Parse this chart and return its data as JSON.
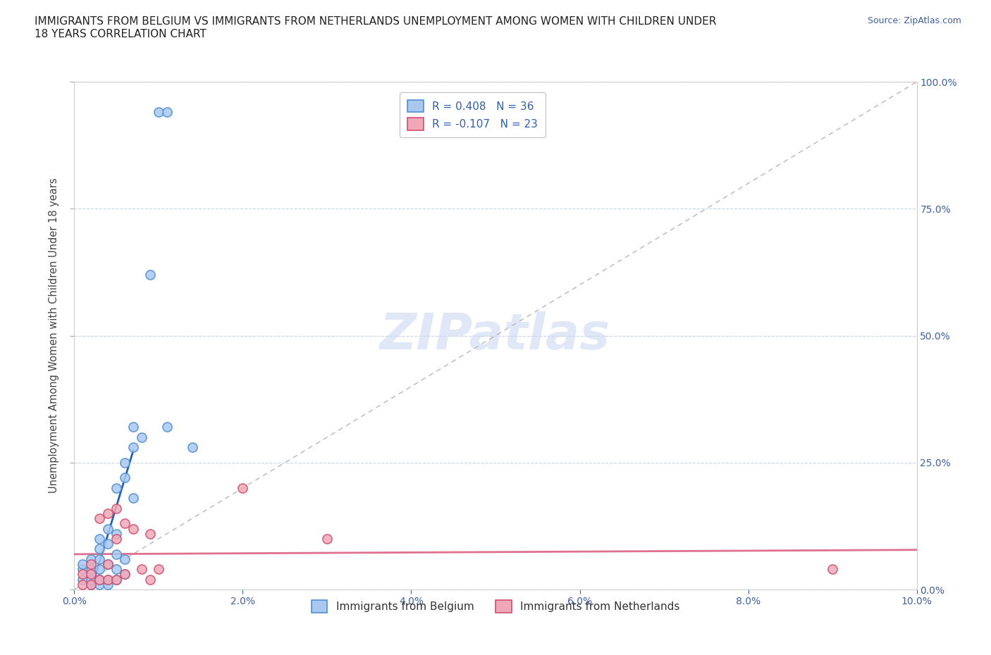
{
  "title": "IMMIGRANTS FROM BELGIUM VS IMMIGRANTS FROM NETHERLANDS UNEMPLOYMENT AMONG WOMEN WITH CHILDREN UNDER\n18 YEARS CORRELATION CHART",
  "source_text": "Source: ZipAtlas.com",
  "ylabel": "Unemployment Among Women with Children Under 18 years",
  "xlim": [
    0.0,
    0.1
  ],
  "ylim": [
    0.0,
    1.0
  ],
  "xtick_labels": [
    "0.0%",
    "2.0%",
    "4.0%",
    "6.0%",
    "8.0%",
    "10.0%"
  ],
  "xtick_vals": [
    0.0,
    0.02,
    0.04,
    0.06,
    0.08,
    0.1
  ],
  "ytick_labels_right": [
    "0.0%",
    "25.0%",
    "50.0%",
    "75.0%",
    "100.0%"
  ],
  "ytick_vals": [
    0.0,
    0.25,
    0.5,
    0.75,
    1.0
  ],
  "belgium_color": "#a8c8f0",
  "netherlands_color": "#f0a8b8",
  "belgium_edge_color": "#5090d0",
  "netherlands_edge_color": "#d05070",
  "belgium_line_color": "#2060c0",
  "netherlands_line_color": "#e07090",
  "diagonal_color": "#b8b8b8",
  "R_belgium": 0.408,
  "N_belgium": 36,
  "R_netherlands": -0.107,
  "N_netherlands": 23,
  "watermark": "ZIPatlas",
  "watermark_color": "#ccd8f0",
  "belgium_x": [
    0.001,
    0.001,
    0.001,
    0.002,
    0.002,
    0.002,
    0.002,
    0.003,
    0.003,
    0.003,
    0.003,
    0.003,
    0.003,
    0.004,
    0.004,
    0.004,
    0.004,
    0.004,
    0.005,
    0.005,
    0.005,
    0.005,
    0.005,
    0.006,
    0.006,
    0.006,
    0.006,
    0.007,
    0.007,
    0.007,
    0.008,
    0.009,
    0.01,
    0.011,
    0.011,
    0.014
  ],
  "belgium_y": [
    0.02,
    0.04,
    0.05,
    0.01,
    0.02,
    0.04,
    0.06,
    0.01,
    0.02,
    0.04,
    0.06,
    0.08,
    0.1,
    0.01,
    0.02,
    0.05,
    0.09,
    0.12,
    0.02,
    0.04,
    0.07,
    0.11,
    0.2,
    0.03,
    0.06,
    0.22,
    0.25,
    0.18,
    0.28,
    0.32,
    0.3,
    0.62,
    0.94,
    0.94,
    0.32,
    0.28
  ],
  "netherlands_x": [
    0.001,
    0.001,
    0.002,
    0.002,
    0.002,
    0.003,
    0.003,
    0.004,
    0.004,
    0.004,
    0.005,
    0.005,
    0.005,
    0.006,
    0.006,
    0.007,
    0.008,
    0.009,
    0.009,
    0.01,
    0.02,
    0.03,
    0.09
  ],
  "netherlands_y": [
    0.01,
    0.03,
    0.01,
    0.03,
    0.05,
    0.02,
    0.14,
    0.02,
    0.05,
    0.15,
    0.02,
    0.1,
    0.16,
    0.03,
    0.13,
    0.12,
    0.04,
    0.02,
    0.11,
    0.04,
    0.2,
    0.1,
    0.04
  ]
}
